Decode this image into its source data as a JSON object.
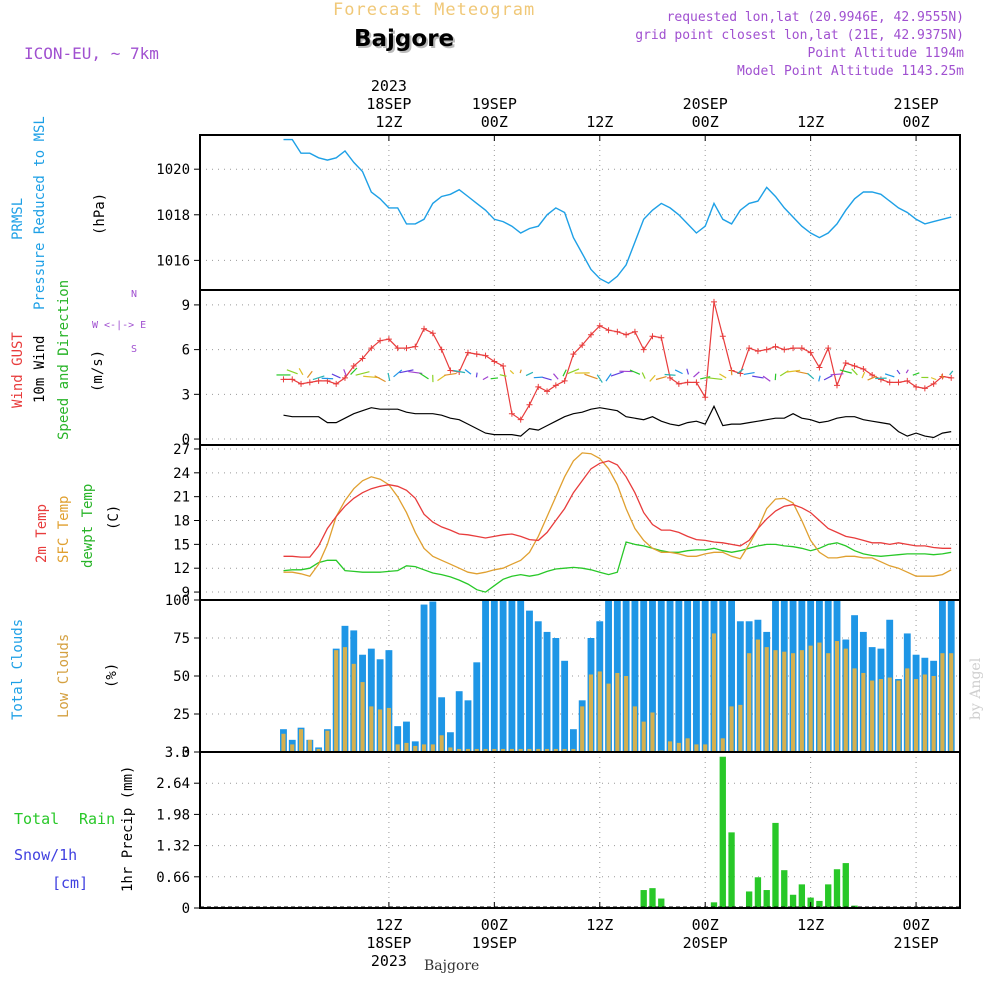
{
  "header": {
    "top_title": "Forecast Meteogram",
    "location": "Bajgore",
    "model": "ICON-EU, ~ 7km",
    "requested": "requested lon,lat (20.9946E, 42.9555N)",
    "grid": "grid point closest lon,lat (21E, 42.9375N)",
    "point_alt": "Point Altitude 1194m",
    "model_alt": "Model Point Altitude 1143.25m",
    "footer": "Bajgore",
    "credit": "by Angel"
  },
  "time_axis": {
    "top_year": "2023",
    "labels": [
      {
        "date": "18SEP",
        "hour": "12Z",
        "t": 12
      },
      {
        "date": "19SEP",
        "hour": "00Z",
        "t": 24
      },
      {
        "date": "",
        "hour": "12Z",
        "t": 36
      },
      {
        "date": "20SEP",
        "hour": "00Z",
        "t": 48
      },
      {
        "date": "",
        "hour": "12Z",
        "t": 60
      },
      {
        "date": "21SEP",
        "hour": "00Z",
        "t": 72
      }
    ],
    "bottom_year": "2023"
  },
  "panel_labels": {
    "pressure": {
      "l1": "PRMSL",
      "l2": "Pressure Reduced to MSL",
      "unit": "(hPa)"
    },
    "wind": {
      "l1": "Wind GUST",
      "l2": "10m Wind",
      "l3": "Speed and Direction",
      "unit": "(m/s)",
      "compass": [
        "N",
        "W <-|-> E",
        "S"
      ]
    },
    "temp": {
      "l1": "2m Temp",
      "l2": "SFC Temp",
      "l3": "dewpt Temp",
      "unit": "(C)"
    },
    "clouds": {
      "l1": "Total Clouds",
      "l2": "Low Clouds",
      "unit": "(%)"
    },
    "precip": {
      "total": "Total",
      "rain": "Rain",
      "snow": "Snow/1h",
      "cm": "[cm]",
      "axis": "1hr Precip (mm)"
    }
  },
  "colors": {
    "pressure": "#1ea0e6",
    "gust": "#e83c3c",
    "wind": "#000000",
    "t2m": "#e83c3c",
    "sfc": "#e0a030",
    "dew": "#28c828",
    "tcc": "#1e96e6",
    "lcc": "#d4b050",
    "precip": "#28c828",
    "snow": "#4040e0",
    "purple": "#a050d0"
  },
  "chart_data": [
    {
      "type": "line",
      "name": "PRMSL",
      "ylim": [
        1014.7,
        1021.5
      ],
      "yticks": [
        1016,
        1018,
        1020
      ],
      "x": [
        0,
        1,
        2,
        3,
        4,
        5,
        6,
        7,
        8,
        9,
        10,
        11,
        12,
        13,
        14,
        15,
        16,
        17,
        18,
        19,
        20,
        21,
        22,
        23,
        24,
        25,
        26,
        27,
        28,
        29,
        30,
        31,
        32,
        33,
        34,
        35,
        36,
        37,
        38,
        39,
        40,
        41,
        42,
        43,
        44,
        45,
        46,
        47,
        48,
        49,
        50,
        51,
        52,
        53,
        54,
        55,
        56,
        57,
        58,
        59,
        60,
        61,
        62,
        63,
        64,
        65,
        66,
        67,
        68,
        69,
        70,
        71,
        72,
        73,
        74,
        75,
        76
      ],
      "values": [
        1021.3,
        1021.3,
        1020.7,
        1020.7,
        1020.5,
        1020.4,
        1020.5,
        1020.8,
        1020.3,
        1019.9,
        1019.0,
        1018.7,
        1018.3,
        1018.3,
        1017.6,
        1017.6,
        1017.8,
        1018.5,
        1018.8,
        1018.9,
        1019.1,
        1018.8,
        1018.5,
        1018.2,
        1017.8,
        1017.7,
        1017.5,
        1017.2,
        1017.4,
        1017.5,
        1018.0,
        1018.3,
        1018.1,
        1017.0,
        1016.3,
        1015.6,
        1015.2,
        1015.0,
        1015.3,
        1015.8,
        1016.8,
        1017.8,
        1018.2,
        1018.5,
        1018.3,
        1018.0,
        1017.6,
        1017.2,
        1017.5,
        1018.5,
        1017.8,
        1017.6,
        1018.2,
        1018.5,
        1018.6,
        1019.2,
        1018.8,
        1018.3,
        1017.9,
        1017.5,
        1017.2,
        1017.0,
        1017.2,
        1017.6,
        1018.2,
        1018.7,
        1019.0,
        1019.0,
        1018.9,
        1018.6,
        1018.3,
        1018.1,
        1017.8,
        1017.6,
        1017.7,
        1017.8,
        1017.9
      ]
    },
    {
      "type": "line",
      "name": "Wind GUST / 10m Wind",
      "ylim": [
        -0.4,
        10
      ],
      "yticks": [
        0,
        3,
        6,
        9
      ],
      "x": [
        0,
        1,
        2,
        3,
        4,
        5,
        6,
        7,
        8,
        9,
        10,
        11,
        12,
        13,
        14,
        15,
        16,
        17,
        18,
        19,
        20,
        21,
        22,
        23,
        24,
        25,
        26,
        27,
        28,
        29,
        30,
        31,
        32,
        33,
        34,
        35,
        36,
        37,
        38,
        39,
        40,
        41,
        42,
        43,
        44,
        45,
        46,
        47,
        48,
        49,
        50,
        51,
        52,
        53,
        54,
        55,
        56,
        57,
        58,
        59,
        60,
        61,
        62,
        63,
        64,
        65,
        66,
        67,
        68,
        69,
        70,
        71,
        72,
        73,
        74,
        75,
        76
      ],
      "gust": [
        4.0,
        4.0,
        3.7,
        3.8,
        3.9,
        3.9,
        3.7,
        4.1,
        4.9,
        5.4,
        6.1,
        6.6,
        6.7,
        6.1,
        6.1,
        6.2,
        7.4,
        7.1,
        6.0,
        4.6,
        4.5,
        5.8,
        5.7,
        5.6,
        5.2,
        4.9,
        1.7,
        1.3,
        2.3,
        3.5,
        3.2,
        3.6,
        3.9,
        5.7,
        6.3,
        7.0,
        7.6,
        7.3,
        7.2,
        7.0,
        7.2,
        6.0,
        6.9,
        6.8,
        4.1,
        3.7,
        3.8,
        3.8,
        2.8,
        9.2,
        6.9,
        4.6,
        4.4,
        6.1,
        5.9,
        6.0,
        6.2,
        6.0,
        6.1,
        6.1,
        5.8,
        4.8,
        6.1,
        3.6,
        5.1,
        4.9,
        4.7,
        4.3,
        4.0,
        3.8,
        3.8,
        3.9,
        3.5,
        3.4,
        3.7,
        4.2,
        4.1
      ],
      "wind": [
        1.6,
        1.5,
        1.5,
        1.5,
        1.5,
        1.1,
        1.1,
        1.4,
        1.7,
        1.9,
        2.1,
        2.0,
        2.0,
        2.0,
        1.8,
        1.7,
        1.7,
        1.7,
        1.6,
        1.4,
        1.3,
        1.0,
        0.7,
        0.4,
        0.3,
        0.3,
        0.3,
        0.2,
        0.7,
        0.6,
        0.9,
        1.2,
        1.5,
        1.7,
        1.8,
        2.0,
        2.1,
        2.0,
        1.9,
        1.5,
        1.4,
        1.3,
        1.5,
        1.2,
        1.0,
        0.9,
        1.1,
        1.2,
        1.0,
        2.2,
        0.9,
        1.0,
        1.0,
        1.1,
        1.2,
        1.3,
        1.4,
        1.4,
        1.7,
        1.4,
        1.3,
        1.1,
        1.2,
        1.4,
        1.5,
        1.5,
        1.3,
        1.2,
        1.1,
        1.0,
        0.5,
        0.2,
        0.4,
        0.2,
        0.1,
        0.4,
        0.5
      ]
    },
    {
      "type": "line",
      "name": "Temperature",
      "ylim": [
        8,
        27.5
      ],
      "yticks": [
        9,
        12,
        15,
        18,
        21,
        24,
        27
      ],
      "x": [
        0,
        1,
        2,
        3,
        4,
        5,
        6,
        7,
        8,
        9,
        10,
        11,
        12,
        13,
        14,
        15,
        16,
        17,
        18,
        19,
        20,
        21,
        22,
        23,
        24,
        25,
        26,
        27,
        28,
        29,
        30,
        31,
        32,
        33,
        34,
        35,
        36,
        37,
        38,
        39,
        40,
        41,
        42,
        43,
        44,
        45,
        46,
        47,
        48,
        49,
        50,
        51,
        52,
        53,
        54,
        55,
        56,
        57,
        58,
        59,
        60,
        61,
        62,
        63,
        64,
        65,
        66,
        67,
        68,
        69,
        70,
        71,
        72,
        73,
        74,
        75,
        76
      ],
      "t2m": [
        13.5,
        13.5,
        13.4,
        13.4,
        14.8,
        17.0,
        18.5,
        19.8,
        20.8,
        21.5,
        22.0,
        22.3,
        22.5,
        22.3,
        21.8,
        20.8,
        18.8,
        17.8,
        17.2,
        16.8,
        16.3,
        16.2,
        16.0,
        15.8,
        16.0,
        16.2,
        16.3,
        16.0,
        15.6,
        15.5,
        16.5,
        18.0,
        19.5,
        21.5,
        23.0,
        24.5,
        25.2,
        25.5,
        25.0,
        23.5,
        21.5,
        19.0,
        17.5,
        16.8,
        16.8,
        16.5,
        16.0,
        15.6,
        15.5,
        15.3,
        15.2,
        15.0,
        14.8,
        15.5,
        17.0,
        18.2,
        19.2,
        19.8,
        20.0,
        19.6,
        19.0,
        18.0,
        17.0,
        16.5,
        16.0,
        15.8,
        15.5,
        15.2,
        15.2,
        15.0,
        15.2,
        15.0,
        14.8,
        14.8,
        14.6,
        14.5,
        14.5
      ],
      "sfc": [
        11.5,
        11.5,
        11.3,
        11.0,
        12.5,
        15.0,
        18.5,
        20.5,
        22.0,
        23.0,
        23.5,
        23.2,
        22.5,
        21.0,
        19.0,
        16.5,
        14.5,
        13.5,
        13.0,
        12.5,
        12.0,
        11.5,
        11.3,
        11.5,
        11.8,
        12.0,
        12.5,
        13.0,
        14.0,
        16.0,
        18.5,
        21.0,
        23.5,
        25.5,
        26.5,
        26.4,
        25.8,
        24.5,
        22.5,
        19.5,
        17.0,
        15.5,
        14.5,
        14.0,
        14.0,
        13.8,
        13.5,
        13.5,
        13.8,
        14.0,
        14.0,
        13.5,
        13.2,
        15.0,
        17.0,
        19.5,
        20.7,
        20.8,
        20.2,
        18.0,
        15.5,
        14.0,
        13.3,
        13.3,
        13.5,
        13.5,
        13.3,
        13.3,
        12.8,
        12.3,
        12.0,
        11.5,
        11.0,
        11.0,
        11.0,
        11.2,
        11.8
      ],
      "dew": [
        11.7,
        11.8,
        11.8,
        12.0,
        12.7,
        13.0,
        13.0,
        11.7,
        11.6,
        11.5,
        11.5,
        11.5,
        11.6,
        11.7,
        12.3,
        12.2,
        11.8,
        11.4,
        11.2,
        10.9,
        10.5,
        10.0,
        9.3,
        9.0,
        9.8,
        10.6,
        11.0,
        11.2,
        11.0,
        11.2,
        11.6,
        11.9,
        12.0,
        12.1,
        12.0,
        11.8,
        11.5,
        11.2,
        11.5,
        15.3,
        15.0,
        14.8,
        14.5,
        14.2,
        14.0,
        14.0,
        14.2,
        14.3,
        14.3,
        14.5,
        14.2,
        14.0,
        14.2,
        14.5,
        14.8,
        15.0,
        15.0,
        14.8,
        14.7,
        14.5,
        14.2,
        14.5,
        15.0,
        15.2,
        14.8,
        14.2,
        13.8,
        13.6,
        13.5,
        13.6,
        13.7,
        13.8,
        13.8,
        13.8,
        13.7,
        13.8,
        14.0
      ]
    },
    {
      "type": "bar",
      "name": "Clouds",
      "ylim": [
        0,
        100
      ],
      "yticks": [
        0,
        25,
        50,
        75,
        100
      ],
      "x": [
        0,
        1,
        2,
        3,
        4,
        5,
        6,
        7,
        8,
        9,
        10,
        11,
        12,
        13,
        14,
        15,
        16,
        17,
        18,
        19,
        20,
        21,
        22,
        23,
        24,
        25,
        26,
        27,
        28,
        29,
        30,
        31,
        32,
        33,
        34,
        35,
        36,
        37,
        38,
        39,
        40,
        41,
        42,
        43,
        44,
        45,
        46,
        47,
        48,
        49,
        50,
        51,
        52,
        53,
        54,
        55,
        56,
        57,
        58,
        59,
        60,
        61,
        62,
        63,
        64,
        65,
        66,
        67,
        68,
        69,
        70,
        71,
        72,
        73,
        74,
        75,
        76
      ],
      "tcc": [
        15,
        8,
        16,
        8,
        3,
        15,
        68,
        83,
        80,
        64,
        68,
        61,
        67,
        17,
        20,
        7,
        97,
        99,
        36,
        13,
        40,
        34,
        59,
        100,
        100,
        100,
        100,
        100,
        93,
        86,
        79,
        75,
        60,
        15,
        34,
        75,
        86,
        100,
        100,
        100,
        100,
        100,
        100,
        100,
        100,
        100,
        100,
        100,
        100,
        100,
        100,
        100,
        86,
        86,
        87,
        79,
        100,
        100,
        100,
        100,
        100,
        100,
        100,
        100,
        74,
        90,
        79,
        69,
        68,
        87,
        48,
        78,
        64,
        62,
        60,
        100,
        100
      ],
      "lcc": [
        12,
        5,
        15,
        8,
        2,
        14,
        67,
        69,
        58,
        46,
        30,
        28,
        29,
        5,
        6,
        4,
        5,
        5,
        11,
        3,
        2,
        2,
        2,
        2,
        2,
        2,
        2,
        2,
        2,
        2,
        2,
        2,
        2,
        2,
        30,
        51,
        53,
        45,
        52,
        50,
        30,
        20,
        26,
        1,
        7,
        6,
        9,
        5,
        5,
        78,
        9,
        30,
        31,
        65,
        74,
        69,
        67,
        66,
        65,
        67,
        70,
        72,
        65,
        73,
        68,
        55,
        52,
        47,
        48,
        49,
        47,
        55,
        48,
        51,
        50,
        65,
        65
      ]
    },
    {
      "type": "bar",
      "name": "1hr Precip (mm)",
      "ylim": [
        0,
        3.3
      ],
      "yticks": [
        0,
        0.66,
        1.32,
        1.98,
        2.64,
        3.3
      ],
      "x": [
        0,
        1,
        2,
        3,
        4,
        5,
        6,
        7,
        8,
        9,
        10,
        11,
        12,
        13,
        14,
        15,
        16,
        17,
        18,
        19,
        20,
        21,
        22,
        23,
        24,
        25,
        26,
        27,
        28,
        29,
        30,
        31,
        32,
        33,
        34,
        35,
        36,
        37,
        38,
        39,
        40,
        41,
        42,
        43,
        44,
        45,
        46,
        47,
        48,
        49,
        50,
        51,
        52,
        53,
        54,
        55,
        56,
        57,
        58,
        59,
        60,
        61,
        62,
        63,
        64,
        65,
        66,
        67,
        68,
        69,
        70,
        71,
        72,
        73,
        74,
        75,
        76
      ],
      "rain": [
        0,
        0,
        0,
        0,
        0,
        0,
        0,
        0,
        0,
        0,
        0,
        0,
        0,
        0,
        0,
        0,
        0,
        0,
        0,
        0,
        0,
        0,
        0,
        0,
        0,
        0,
        0,
        0,
        0,
        0,
        0,
        0,
        0,
        0,
        0,
        0,
        0,
        0,
        0,
        0,
        0.02,
        0.38,
        0.42,
        0.2,
        0,
        0,
        0,
        0,
        0,
        0.12,
        3.2,
        1.6,
        0,
        0.35,
        0.65,
        0.38,
        1.8,
        0.8,
        0.28,
        0.5,
        0.22,
        0.15,
        0.5,
        0.82,
        0.95,
        0.05,
        0,
        0,
        0,
        0,
        0,
        0,
        0,
        0,
        0,
        0,
        0
      ]
    }
  ]
}
